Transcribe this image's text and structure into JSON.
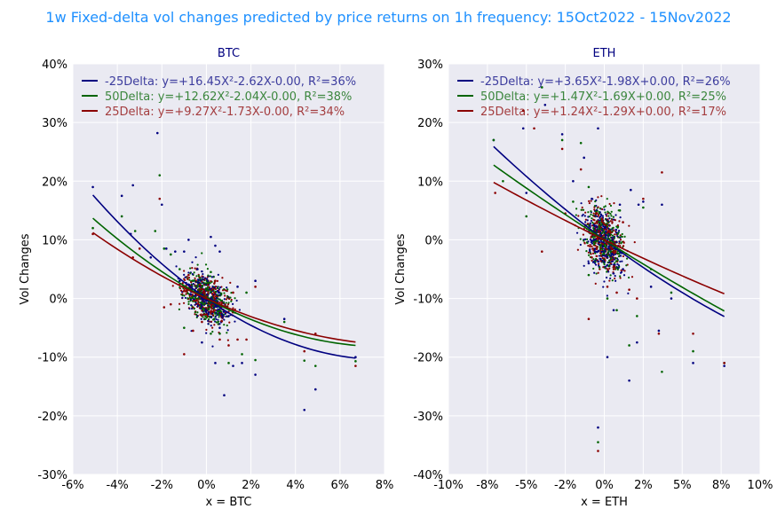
{
  "suptitle": "1w Fixed-delta vol changes predicted by price returns on 1h frequency: 15Oct2022 - 15Nov2022",
  "chart_data": [
    {
      "type": "scatter",
      "title": "BTC",
      "xlabel": "x = BTC",
      "ylabel": "Vol Changes",
      "xlim": [
        -0.06,
        0.08
      ],
      "ylim": [
        -0.3,
        0.4
      ],
      "xticks": [
        -0.06,
        -0.04,
        -0.02,
        0.0,
        0.02,
        0.04,
        0.06,
        0.08
      ],
      "xtick_labels": [
        "-6%",
        "-4%",
        "-2%",
        "0%",
        "2%",
        "4%",
        "6%",
        "8%"
      ],
      "yticks": [
        -0.3,
        -0.2,
        -0.1,
        0.0,
        0.1,
        0.2,
        0.3,
        0.4
      ],
      "ytick_labels": [
        "-30%",
        "-20%",
        "-10%",
        "0%",
        "10%",
        "20%",
        "30%",
        "40%"
      ],
      "grid": true,
      "legend_position": "top-left",
      "fit_x_range": [
        -0.051,
        0.067
      ],
      "series": [
        {
          "name": "-25Delta: y=+16.45X²-2.62X-0.00, R²=36%",
          "color": "#000080",
          "coeffs": [
            16.45,
            -2.62,
            0.0
          ],
          "points": [
            [
              -0.051,
              0.19
            ],
            [
              -0.038,
              0.175
            ],
            [
              -0.033,
              0.193
            ],
            [
              -0.022,
              0.282
            ],
            [
              -0.02,
              0.16
            ],
            [
              -0.034,
              0.11
            ],
            [
              -0.025,
              0.07
            ],
            [
              -0.018,
              0.085
            ],
            [
              -0.014,
              0.08
            ],
            [
              -0.01,
              0.08
            ],
            [
              -0.008,
              0.1
            ],
            [
              0.002,
              0.105
            ],
            [
              0.004,
              0.09
            ],
            [
              0.006,
              0.08
            ],
            [
              0.004,
              -0.11
            ],
            [
              0.008,
              -0.165
            ],
            [
              0.012,
              -0.115
            ],
            [
              0.016,
              -0.11
            ],
            [
              0.022,
              -0.13
            ],
            [
              0.022,
              0.03
            ],
            [
              0.035,
              -0.035
            ],
            [
              0.044,
              -0.19
            ],
            [
              0.049,
              -0.155
            ],
            [
              0.067,
              -0.1
            ],
            [
              -0.004,
              0.05
            ],
            [
              0.006,
              -0.05
            ],
            [
              -0.002,
              -0.075
            ],
            [
              0.01,
              -0.03
            ],
            [
              -0.012,
              0.03
            ],
            [
              0.014,
              0.02
            ]
          ]
        },
        {
          "name": "50Delta: y=+12.62X²-2.04X-0.00, R²=38%",
          "color": "#006400",
          "coeffs": [
            12.62,
            -2.04,
            0.0
          ],
          "points": [
            [
              -0.051,
              0.12
            ],
            [
              -0.038,
              0.14
            ],
            [
              -0.032,
              0.115
            ],
            [
              -0.023,
              0.115
            ],
            [
              -0.021,
              0.21
            ],
            [
              -0.019,
              0.085
            ],
            [
              -0.016,
              0.075
            ],
            [
              -0.012,
              0.05
            ],
            [
              -0.006,
              0.03
            ],
            [
              0.002,
              0.045
            ],
            [
              0.006,
              -0.06
            ],
            [
              0.01,
              -0.11
            ],
            [
              0.016,
              -0.095
            ],
            [
              0.022,
              -0.105
            ],
            [
              0.035,
              -0.04
            ],
            [
              0.044,
              -0.106
            ],
            [
              0.049,
              -0.115
            ],
            [
              0.067,
              -0.107
            ],
            [
              0.002,
              -0.06
            ],
            [
              -0.004,
              0.02
            ],
            [
              0.012,
              -0.02
            ],
            [
              -0.01,
              -0.05
            ],
            [
              0.018,
              0.01
            ]
          ]
        },
        {
          "name": "25Delta: y=+9.27X²-1.73X-0.00, R²=34%",
          "color": "#8b0000",
          "coeffs": [
            9.27,
            -1.73,
            0.0
          ],
          "points": [
            [
              -0.051,
              0.11
            ],
            [
              -0.033,
              0.07
            ],
            [
              -0.03,
              0.085
            ],
            [
              -0.021,
              0.17
            ],
            [
              -0.019,
              -0.015
            ],
            [
              -0.016,
              -0.01
            ],
            [
              -0.01,
              -0.095
            ],
            [
              -0.006,
              -0.055
            ],
            [
              0.006,
              -0.07
            ],
            [
              0.01,
              -0.08
            ],
            [
              0.014,
              -0.07
            ],
            [
              0.018,
              -0.07
            ],
            [
              0.022,
              0.02
            ],
            [
              0.044,
              -0.09
            ],
            [
              0.049,
              -0.06
            ],
            [
              0.067,
              -0.115
            ],
            [
              0.004,
              0.03
            ],
            [
              -0.008,
              0.04
            ],
            [
              0.012,
              0.01
            ],
            [
              -0.002,
              -0.04
            ]
          ]
        }
      ]
    },
    {
      "type": "scatter",
      "title": "ETH",
      "xlabel": "x = ETH",
      "ylabel": "Vol Changes",
      "xlim": [
        -0.1,
        0.1
      ],
      "ylim": [
        -0.4,
        0.3
      ],
      "xticks": [
        -0.1,
        -0.075,
        -0.05,
        -0.025,
        0.0,
        0.025,
        0.05,
        0.075,
        0.1
      ],
      "xtick_labels": [
        "-10%",
        "-8%",
        "-5%",
        "-2%",
        "0%",
        "2%",
        "5%",
        "8%",
        "10%"
      ],
      "yticks": [
        -0.4,
        -0.3,
        -0.2,
        -0.1,
        0.0,
        0.1,
        0.2,
        0.3
      ],
      "ytick_labels": [
        "-40%",
        "-30%",
        "-20%",
        "-10%",
        "0%",
        "10%",
        "20%",
        "30%"
      ],
      "grid": true,
      "legend_position": "top-left",
      "fit_x_range": [
        -0.071,
        0.077
      ],
      "series": [
        {
          "name": "-25Delta: y=+3.65X²-1.98X+0.00, R²=26%",
          "color": "#000080",
          "coeffs": [
            3.65,
            -1.98,
            0.0
          ],
          "points": [
            [
              -0.071,
              0.17
            ],
            [
              -0.052,
              0.19
            ],
            [
              -0.05,
              0.08
            ],
            [
              -0.038,
              0.23
            ],
            [
              -0.027,
              0.18
            ],
            [
              -0.02,
              0.1
            ],
            [
              -0.013,
              0.14
            ],
            [
              -0.008,
              0.07
            ],
            [
              -0.004,
              0.19
            ],
            [
              -0.004,
              -0.32
            ],
            [
              0.002,
              -0.2
            ],
            [
              0.006,
              -0.12
            ],
            [
              0.016,
              -0.24
            ],
            [
              0.017,
              0.085
            ],
            [
              0.021,
              -0.175
            ],
            [
              0.022,
              0.06
            ],
            [
              0.025,
              0.065
            ],
            [
              0.03,
              -0.08
            ],
            [
              0.037,
              0.06
            ],
            [
              0.043,
              -0.1
            ],
            [
              0.057,
              -0.21
            ],
            [
              0.077,
              -0.215
            ],
            [
              0.035,
              -0.155
            ],
            [
              0.01,
              0.06
            ],
            [
              -0.01,
              -0.04
            ],
            [
              0.012,
              -0.05
            ]
          ]
        },
        {
          "name": "50Delta: y=+1.47X²-1.69X+0.00, R²=25%",
          "color": "#006400",
          "coeffs": [
            1.47,
            -1.69,
            0.0
          ],
          "points": [
            [
              -0.071,
              0.17
            ],
            [
              -0.065,
              0.1
            ],
            [
              -0.05,
              0.04
            ],
            [
              -0.04,
              0.26
            ],
            [
              -0.027,
              0.17
            ],
            [
              -0.02,
              0.065
            ],
            [
              -0.015,
              0.165
            ],
            [
              -0.01,
              0.09
            ],
            [
              -0.004,
              -0.345
            ],
            [
              0.002,
              -0.1
            ],
            [
              0.008,
              -0.12
            ],
            [
              0.016,
              -0.18
            ],
            [
              0.021,
              -0.13
            ],
            [
              0.025,
              0.055
            ],
            [
              0.03,
              -0.05
            ],
            [
              0.037,
              -0.225
            ],
            [
              0.043,
              -0.09
            ],
            [
              0.057,
              -0.19
            ],
            [
              0.077,
              -0.21
            ],
            [
              0.01,
              0.05
            ],
            [
              -0.01,
              -0.06
            ]
          ]
        },
        {
          "name": "25Delta: y=+1.24X²-1.29X+0.00, R²=17%",
          "color": "#8b0000",
          "coeffs": [
            1.24,
            -1.29,
            0.0
          ],
          "points": [
            [
              -0.07,
              0.08
            ],
            [
              -0.052,
              0.22
            ],
            [
              -0.045,
              0.19
            ],
            [
              -0.04,
              -0.02
            ],
            [
              -0.027,
              0.155
            ],
            [
              -0.025,
              0.045
            ],
            [
              -0.015,
              0.12
            ],
            [
              -0.01,
              -0.135
            ],
            [
              -0.004,
              -0.36
            ],
            [
              0.002,
              -0.08
            ],
            [
              0.008,
              -0.09
            ],
            [
              0.016,
              -0.085
            ],
            [
              0.021,
              -0.1
            ],
            [
              0.025,
              0.07
            ],
            [
              0.037,
              0.115
            ],
            [
              0.035,
              -0.16
            ],
            [
              0.057,
              -0.16
            ],
            [
              0.077,
              -0.21
            ],
            [
              0.012,
              0.03
            ],
            [
              -0.008,
              -0.03
            ]
          ]
        }
      ]
    }
  ]
}
